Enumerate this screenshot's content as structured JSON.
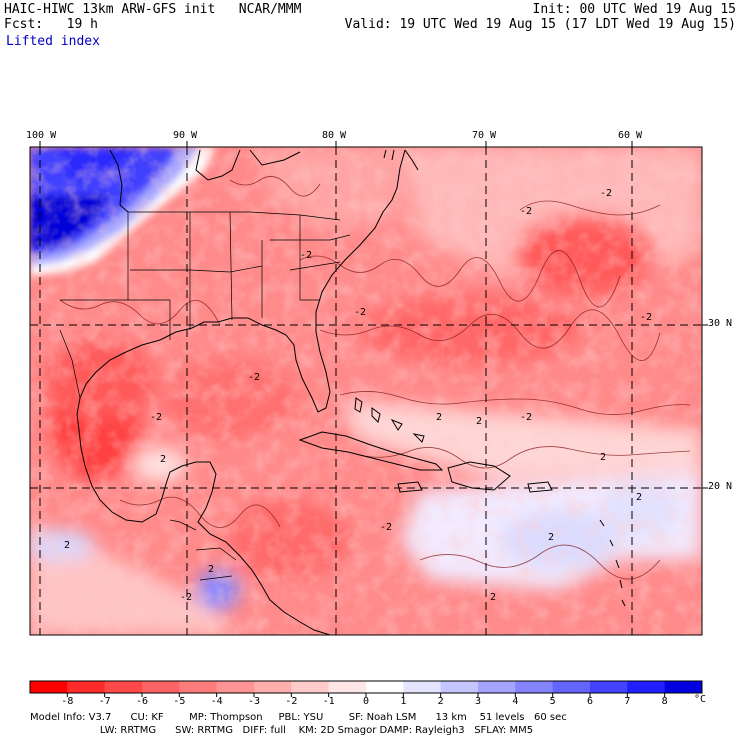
{
  "header": {
    "model": "HAIC-HIWC 13km ARW-GFS init   NCAR/MMM",
    "init": "Init: 00 UTC Wed 19 Aug 15",
    "forecast": "Fcst:   19 h",
    "valid": "Valid: 19 UTC Wed 19 Aug 15 (17 LDT Wed 19 Aug 15)",
    "field": "Lifted index"
  },
  "map": {
    "lon_labels": [
      "100 W",
      "90 W",
      "80 W",
      "70 W",
      "60 W"
    ],
    "lat_labels": [
      "30 N",
      "20 N"
    ],
    "contour_labels": [
      "-2",
      "-2",
      "-2",
      "-2",
      "-2",
      "-2",
      "-2",
      "-2",
      "-2",
      "-2",
      "2",
      "2",
      "2",
      "2",
      "2",
      "2",
      "2",
      "2",
      "2"
    ]
  },
  "colorbar": {
    "tick_labels": [
      "-8",
      "-7",
      "-6",
      "-5",
      "-4",
      "-3",
      "-2",
      "-1",
      "0",
      "1",
      "2",
      "3",
      "4",
      "5",
      "6",
      "7",
      "8"
    ],
    "unit": "°C",
    "colors": [
      "#ff0000",
      "#ff2a2a",
      "#ff4848",
      "#ff6464",
      "#ff7c7c",
      "#ff9494",
      "#ffaeae",
      "#ffcaca",
      "#ffe6e6",
      "#ffffff",
      "#e4e4ff",
      "#c4c4ff",
      "#a4a4ff",
      "#8484ff",
      "#6464ff",
      "#4242ff",
      "#2020ff",
      "#0000e0"
    ]
  },
  "footer": {
    "line1": "Model Info: V3.7      CU: KF        MP: Thompson     PBL: YSU        SF: Noah LSM      13 km    51 levels   60 sec",
    "line2": "                      LW: RRTMG      SW: RRTMG   DIFF: full    KM: 2D Smagor DAMP: Rayleigh3   SFLAY: MM5"
  }
}
